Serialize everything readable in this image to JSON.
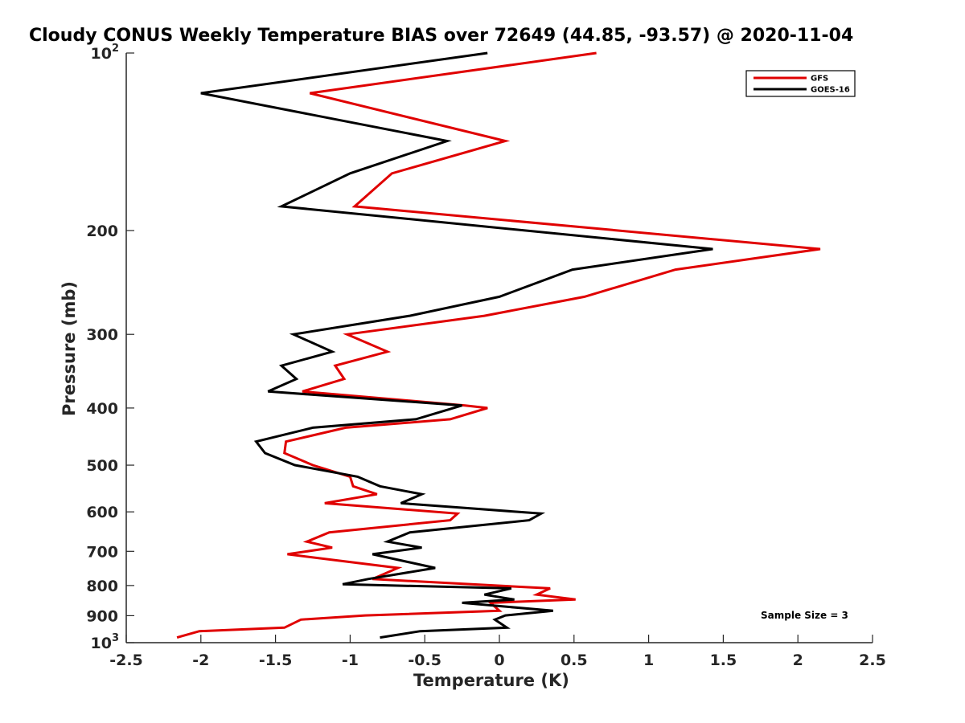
{
  "chart_data": {
    "type": "line",
    "title": "Cloudy CONUS Weekly Temperature BIAS over 72649 (44.85, -93.57) @ 2020-11-04",
    "xlabel": "Temperature (K)",
    "ylabel": "Pressure (mb)",
    "xlim": [
      -2.5,
      2.5
    ],
    "ylim": [
      100,
      1000
    ],
    "y_scale": "log",
    "y_reversed": true,
    "grid": false,
    "legend_position": "top-right",
    "x_ticks": [
      -2.5,
      -2,
      -1.5,
      -1,
      -0.5,
      0,
      0.5,
      1,
      1.5,
      2,
      2.5
    ],
    "x_tick_labels": [
      "-2.5",
      "-2",
      "-1.5",
      "-1",
      "-0.5",
      "0",
      "0.5",
      "1",
      "1.5",
      "2",
      "2.5"
    ],
    "y_ticks": [
      200,
      300,
      400,
      500,
      600,
      700,
      800,
      900
    ],
    "y_tick_labels": [
      "200",
      "300",
      "400",
      "500",
      "600",
      "700",
      "800",
      "900"
    ],
    "y_exp_ticks": [
      {
        "value": 100,
        "base": "10",
        "exp": "2"
      },
      {
        "value": 1000,
        "base": "10",
        "exp": "3"
      }
    ],
    "series": [
      {
        "name": "GFS",
        "color": "#e00000",
        "points": [
          {
            "x": 0.65,
            "y": 100
          },
          {
            "x": -1.27,
            "y": 117
          },
          {
            "x": 0.04,
            "y": 141
          },
          {
            "x": -0.72,
            "y": 160
          },
          {
            "x": -0.97,
            "y": 182
          },
          {
            "x": 2.15,
            "y": 215
          },
          {
            "x": 1.18,
            "y": 233
          },
          {
            "x": 0.57,
            "y": 259
          },
          {
            "x": -0.1,
            "y": 279
          },
          {
            "x": -1.02,
            "y": 300
          },
          {
            "x": -0.75,
            "y": 321
          },
          {
            "x": -1.1,
            "y": 339
          },
          {
            "x": -1.04,
            "y": 357
          },
          {
            "x": -1.32,
            "y": 375
          },
          {
            "x": -0.23,
            "y": 396
          },
          {
            "x": -0.08,
            "y": 400
          },
          {
            "x": -0.33,
            "y": 418
          },
          {
            "x": -1.03,
            "y": 432
          },
          {
            "x": -1.43,
            "y": 456
          },
          {
            "x": -1.44,
            "y": 477
          },
          {
            "x": -1.25,
            "y": 500
          },
          {
            "x": -1.0,
            "y": 523
          },
          {
            "x": -0.98,
            "y": 543
          },
          {
            "x": -0.82,
            "y": 560
          },
          {
            "x": -1.17,
            "y": 580
          },
          {
            "x": -0.28,
            "y": 604
          },
          {
            "x": -0.33,
            "y": 620
          },
          {
            "x": -1.14,
            "y": 650
          },
          {
            "x": -1.29,
            "y": 674
          },
          {
            "x": -1.12,
            "y": 690
          },
          {
            "x": -1.42,
            "y": 708
          },
          {
            "x": -0.68,
            "y": 747
          },
          {
            "x": -0.85,
            "y": 780
          },
          {
            "x": 0.34,
            "y": 809
          },
          {
            "x": 0.25,
            "y": 829
          },
          {
            "x": 0.51,
            "y": 845
          },
          {
            "x": -0.06,
            "y": 856
          },
          {
            "x": 0.0,
            "y": 883
          },
          {
            "x": -0.9,
            "y": 899
          },
          {
            "x": -1.33,
            "y": 914
          },
          {
            "x": -1.44,
            "y": 943
          },
          {
            "x": -2.01,
            "y": 956
          },
          {
            "x": -2.16,
            "y": 980
          }
        ]
      },
      {
        "name": "GOES-16",
        "color": "#000000",
        "points": [
          {
            "x": -0.08,
            "y": 100
          },
          {
            "x": -2.0,
            "y": 117
          },
          {
            "x": -0.35,
            "y": 141
          },
          {
            "x": -1.0,
            "y": 160
          },
          {
            "x": -1.46,
            "y": 182
          },
          {
            "x": 1.43,
            "y": 215
          },
          {
            "x": 0.49,
            "y": 233
          },
          {
            "x": 0.0,
            "y": 259
          },
          {
            "x": -0.6,
            "y": 279
          },
          {
            "x": -1.38,
            "y": 300
          },
          {
            "x": -1.12,
            "y": 321
          },
          {
            "x": -1.46,
            "y": 339
          },
          {
            "x": -1.36,
            "y": 357
          },
          {
            "x": -1.55,
            "y": 375
          },
          {
            "x": -0.25,
            "y": 396
          },
          {
            "x": -0.56,
            "y": 418
          },
          {
            "x": -1.25,
            "y": 432
          },
          {
            "x": -1.63,
            "y": 456
          },
          {
            "x": -1.57,
            "y": 477
          },
          {
            "x": -1.37,
            "y": 500
          },
          {
            "x": -0.95,
            "y": 523
          },
          {
            "x": -0.8,
            "y": 543
          },
          {
            "x": -0.52,
            "y": 560
          },
          {
            "x": -0.66,
            "y": 580
          },
          {
            "x": 0.28,
            "y": 604
          },
          {
            "x": 0.2,
            "y": 620
          },
          {
            "x": -0.6,
            "y": 650
          },
          {
            "x": -0.75,
            "y": 674
          },
          {
            "x": -0.52,
            "y": 690
          },
          {
            "x": -0.85,
            "y": 708
          },
          {
            "x": -0.43,
            "y": 747
          },
          {
            "x": -0.88,
            "y": 780
          },
          {
            "x": -1.05,
            "y": 796
          },
          {
            "x": 0.08,
            "y": 809
          },
          {
            "x": -0.1,
            "y": 829
          },
          {
            "x": 0.1,
            "y": 845
          },
          {
            "x": -0.25,
            "y": 856
          },
          {
            "x": 0.36,
            "y": 883
          },
          {
            "x": 0.04,
            "y": 899
          },
          {
            "x": -0.03,
            "y": 914
          },
          {
            "x": 0.05,
            "y": 943
          },
          {
            "x": -0.53,
            "y": 956
          },
          {
            "x": -0.8,
            "y": 980
          }
        ]
      }
    ],
    "annotations": [
      "Sample Size = 3"
    ]
  }
}
